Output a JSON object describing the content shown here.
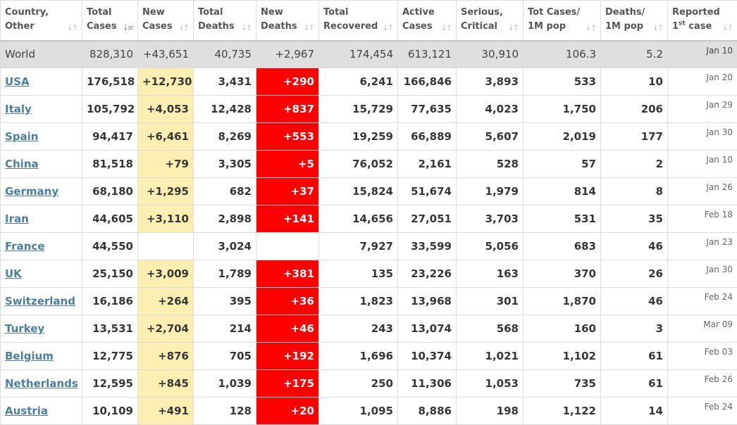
{
  "colors": {
    "new_cases_bg": "#fdeeb1",
    "new_deaths_bg": "#fe0000",
    "world_row_bg": "#dfdfdf",
    "link": "#4b7fa0"
  },
  "headers": [
    {
      "key": "country",
      "line1": "Country,",
      "line2": "Other",
      "sort_icon": "sort-arrows-icon"
    },
    {
      "key": "total_cases",
      "line1": "Total",
      "line2": "Cases",
      "sort_icon": "sort-descending-icon"
    },
    {
      "key": "new_cases",
      "line1": "New",
      "line2": "Cases",
      "sort_icon": "sort-arrows-icon"
    },
    {
      "key": "total_deaths",
      "line1": "Total",
      "line2": "Deaths",
      "sort_icon": "sort-arrows-icon"
    },
    {
      "key": "new_deaths",
      "line1": "New",
      "line2": "Deaths",
      "sort_icon": "sort-arrows-icon"
    },
    {
      "key": "total_recovered",
      "line1": "Total",
      "line2": "Recovered",
      "sort_icon": "sort-arrows-icon"
    },
    {
      "key": "active_cases",
      "line1": "Active",
      "line2": "Cases",
      "sort_icon": "sort-arrows-icon"
    },
    {
      "key": "serious_critical",
      "line1": "Serious,",
      "line2": "Critical",
      "sort_icon": "sort-arrows-icon"
    },
    {
      "key": "tot_cases_1m",
      "line1": "Tot Cases/",
      "line2": "1M pop",
      "sort_icon": "sort-arrows-icon"
    },
    {
      "key": "deaths_1m",
      "line1": "Deaths/",
      "line2": "1M pop",
      "sort_icon": "sort-arrows-icon"
    },
    {
      "key": "reported_first",
      "line1": "Reported",
      "line2_pre": "1",
      "line2_sup": "st",
      "line2_post": " case",
      "sort_icon": "sort-arrows-icon"
    }
  ],
  "world": {
    "country": "World",
    "total_cases": "828,310",
    "new_cases": "+43,651",
    "total_deaths": "40,735",
    "new_deaths": "+2,967",
    "total_recovered": "174,454",
    "active_cases": "613,121",
    "serious_critical": "30,910",
    "tot_cases_1m": "106.3",
    "deaths_1m": "5.2",
    "reported_first": "Jan 10"
  },
  "rows": [
    {
      "country": "USA",
      "total_cases": "176,518",
      "new_cases": "+12,730",
      "total_deaths": "3,431",
      "new_deaths": "+290",
      "total_recovered": "6,241",
      "active_cases": "166,846",
      "serious_critical": "3,893",
      "tot_cases_1m": "533",
      "deaths_1m": "10",
      "reported_first": "Jan 20"
    },
    {
      "country": "Italy",
      "total_cases": "105,792",
      "new_cases": "+4,053",
      "total_deaths": "12,428",
      "new_deaths": "+837",
      "total_recovered": "15,729",
      "active_cases": "77,635",
      "serious_critical": "4,023",
      "tot_cases_1m": "1,750",
      "deaths_1m": "206",
      "reported_first": "Jan 29"
    },
    {
      "country": "Spain",
      "total_cases": "94,417",
      "new_cases": "+6,461",
      "total_deaths": "8,269",
      "new_deaths": "+553",
      "total_recovered": "19,259",
      "active_cases": "66,889",
      "serious_critical": "5,607",
      "tot_cases_1m": "2,019",
      "deaths_1m": "177",
      "reported_first": "Jan 30"
    },
    {
      "country": "China",
      "total_cases": "81,518",
      "new_cases": "+79",
      "total_deaths": "3,305",
      "new_deaths": "+5",
      "total_recovered": "76,052",
      "active_cases": "2,161",
      "serious_critical": "528",
      "tot_cases_1m": "57",
      "deaths_1m": "2",
      "reported_first": "Jan 10"
    },
    {
      "country": "Germany",
      "total_cases": "68,180",
      "new_cases": "+1,295",
      "total_deaths": "682",
      "new_deaths": "+37",
      "total_recovered": "15,824",
      "active_cases": "51,674",
      "serious_critical": "1,979",
      "tot_cases_1m": "814",
      "deaths_1m": "8",
      "reported_first": "Jan 26"
    },
    {
      "country": "Iran",
      "total_cases": "44,605",
      "new_cases": "+3,110",
      "total_deaths": "2,898",
      "new_deaths": "+141",
      "total_recovered": "14,656",
      "active_cases": "27,051",
      "serious_critical": "3,703",
      "tot_cases_1m": "531",
      "deaths_1m": "35",
      "reported_first": "Feb 18"
    },
    {
      "country": "France",
      "total_cases": "44,550",
      "new_cases": "",
      "total_deaths": "3,024",
      "new_deaths": "",
      "total_recovered": "7,927",
      "active_cases": "33,599",
      "serious_critical": "5,056",
      "tot_cases_1m": "683",
      "deaths_1m": "46",
      "reported_first": "Jan 23"
    },
    {
      "country": "UK",
      "total_cases": "25,150",
      "new_cases": "+3,009",
      "total_deaths": "1,789",
      "new_deaths": "+381",
      "total_recovered": "135",
      "active_cases": "23,226",
      "serious_critical": "163",
      "tot_cases_1m": "370",
      "deaths_1m": "26",
      "reported_first": "Jan 30"
    },
    {
      "country": "Switzerland",
      "total_cases": "16,186",
      "new_cases": "+264",
      "total_deaths": "395",
      "new_deaths": "+36",
      "total_recovered": "1,823",
      "active_cases": "13,968",
      "serious_critical": "301",
      "tot_cases_1m": "1,870",
      "deaths_1m": "46",
      "reported_first": "Feb 24"
    },
    {
      "country": "Turkey",
      "total_cases": "13,531",
      "new_cases": "+2,704",
      "total_deaths": "214",
      "new_deaths": "+46",
      "total_recovered": "243",
      "active_cases": "13,074",
      "serious_critical": "568",
      "tot_cases_1m": "160",
      "deaths_1m": "3",
      "reported_first": "Mar 09"
    },
    {
      "country": "Belgium",
      "total_cases": "12,775",
      "new_cases": "+876",
      "total_deaths": "705",
      "new_deaths": "+192",
      "total_recovered": "1,696",
      "active_cases": "10,374",
      "serious_critical": "1,021",
      "tot_cases_1m": "1,102",
      "deaths_1m": "61",
      "reported_first": "Feb 03"
    },
    {
      "country": "Netherlands",
      "total_cases": "12,595",
      "new_cases": "+845",
      "total_deaths": "1,039",
      "new_deaths": "+175",
      "total_recovered": "250",
      "active_cases": "11,306",
      "serious_critical": "1,053",
      "tot_cases_1m": "735",
      "deaths_1m": "61",
      "reported_first": "Feb 26"
    },
    {
      "country": "Austria",
      "total_cases": "10,109",
      "new_cases": "+491",
      "total_deaths": "128",
      "new_deaths": "+20",
      "total_recovered": "1,095",
      "active_cases": "8,886",
      "serious_critical": "198",
      "tot_cases_1m": "1,122",
      "deaths_1m": "14",
      "reported_first": "Feb 24"
    }
  ]
}
